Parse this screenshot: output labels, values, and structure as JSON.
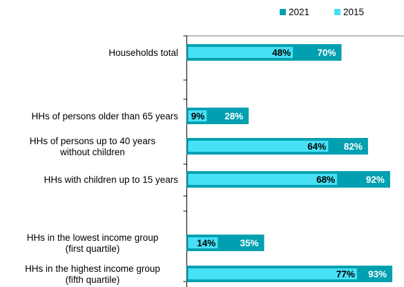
{
  "chart_data": {
    "type": "bar",
    "orientation": "horizontal",
    "title": "",
    "xlabel": "",
    "ylabel": "",
    "xlim": [
      0,
      100
    ],
    "grid": false,
    "legend_position": "top-right",
    "categories": [
      {
        "label": [
          "Households total"
        ],
        "v2021": 48,
        "v2015": 70
      },
      {
        "label": [
          "HHs of persons older than 65 years"
        ],
        "v2021": 9,
        "v2015": 28
      },
      {
        "label": [
          "HHs of persons up to 40 years",
          "without children"
        ],
        "v2021": 64,
        "v2015": 82
      },
      {
        "label": [
          "HHs with children up to 15 years"
        ],
        "v2021": 68,
        "v2015": 92
      },
      {
        "label": [
          "HHs in the lowest income group",
          "(first quartile)"
        ],
        "v2021": 14,
        "v2015": 35
      },
      {
        "label": [
          "HHs in the highest income group",
          "(fifth quartile)"
        ],
        "v2021": 77,
        "v2015": 93
      }
    ],
    "series": [
      {
        "name": "2021",
        "color": "#00A0B0",
        "key": "v2021",
        "label_color": "#000000"
      },
      {
        "name": "2015",
        "color": "#47E0F5",
        "key": "v2015",
        "label_color": "#ffffff"
      }
    ]
  }
}
